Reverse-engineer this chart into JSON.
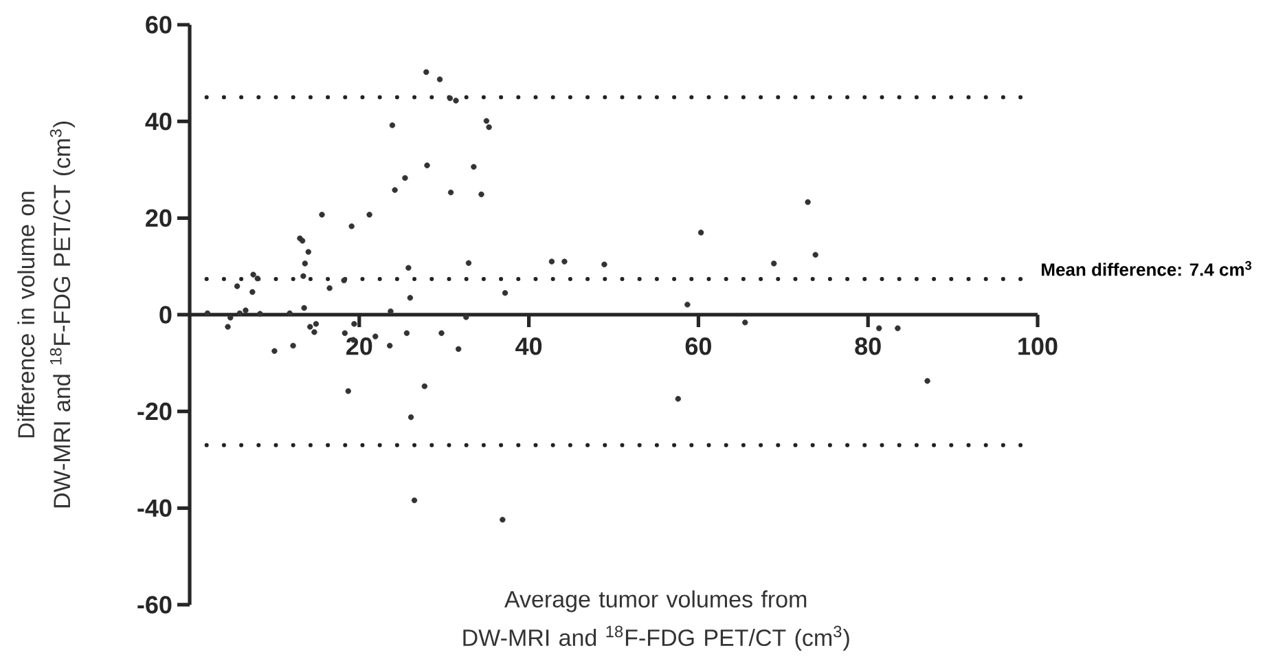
{
  "chart_data": {
    "type": "scatter",
    "xlabel": "Average tumor volumes from DW-MRI and $^{18}$F-FDG PET/CT (cm$^{3}$)",
    "ylabel": "Difference in volume on DW-MRI and $^{18}$F-FDG PET/CT (cm$^{3}$)",
    "xlim": [
      0,
      100
    ],
    "ylim": [
      -60,
      60
    ],
    "xticks": [
      20,
      40,
      60,
      80,
      100
    ],
    "yticks": [
      -60,
      -40,
      -20,
      0,
      20,
      40,
      60
    ],
    "grid": false,
    "legend": false,
    "marker": "circle",
    "ref_lines": [
      {
        "axis": "y",
        "value": 45,
        "line_style": "dotted",
        "color": "#222222"
      },
      {
        "axis": "y",
        "value": 7.4,
        "line_style": "dotted",
        "color": "#222222",
        "label": "Mean difference: 7.4 cm$^{3}$"
      },
      {
        "axis": "y",
        "value": -27,
        "line_style": "dotted",
        "color": "#222222"
      }
    ],
    "series": [
      {
        "color": "#333333",
        "x": [
          2.1,
          4.5,
          4.8,
          5.6,
          5.9,
          6.6,
          7.4,
          7.5,
          8.0,
          8.3,
          10.0,
          11.8,
          12.2,
          13.0,
          13.3,
          14.0,
          13.6,
          13.4,
          13.5,
          14.2,
          14.7,
          14.9,
          15.6,
          16.5,
          18.2,
          18.3,
          19.1,
          19.3,
          19.4,
          21.2,
          21.9,
          23.6,
          23.7,
          23.9,
          24.2,
          25.4,
          25.8,
          26.0,
          25.6,
          27.9,
          28.0,
          29.5,
          29.7,
          30.7,
          31.4,
          30.8,
          31.7,
          32.6,
          32.9,
          33.5,
          34.4,
          35.0,
          35.3,
          37.2,
          18.7,
          26.1,
          27.7,
          26.5,
          36.9,
          42.7,
          44.2,
          48.9,
          60.3,
          58.7,
          65.5,
          68.9,
          73.8,
          72.9,
          81.3,
          83.5,
          87.0,
          57.6
        ],
        "values": [
          0.3,
          -2.5,
          -0.6,
          5.9,
          0.3,
          0.9,
          4.7,
          8.3,
          7.5,
          0.2,
          -7.5,
          0.3,
          -6.4,
          15.8,
          15.3,
          13.0,
          10.6,
          8.0,
          1.4,
          -2.5,
          -3.6,
          -1.9,
          20.7,
          5.5,
          7.1,
          -3.8,
          18.3,
          -5.2,
          -1.9,
          20.7,
          -4.5,
          -6.4,
          0.7,
          39.2,
          25.8,
          28.3,
          9.7,
          3.5,
          -3.8,
          50.2,
          30.9,
          48.7,
          -3.8,
          44.8,
          44.3,
          25.3,
          -7.1,
          -0.5,
          10.7,
          30.6,
          24.9,
          40.1,
          38.8,
          4.5,
          -15.8,
          -21.2,
          -14.8,
          -38.4,
          -42.4,
          11.0,
          11.0,
          10.4,
          17.0,
          2.1,
          -1.6,
          10.6,
          12.4,
          23.3,
          -2.8,
          -2.8,
          -13.7,
          -17.4
        ]
      }
    ]
  }
}
